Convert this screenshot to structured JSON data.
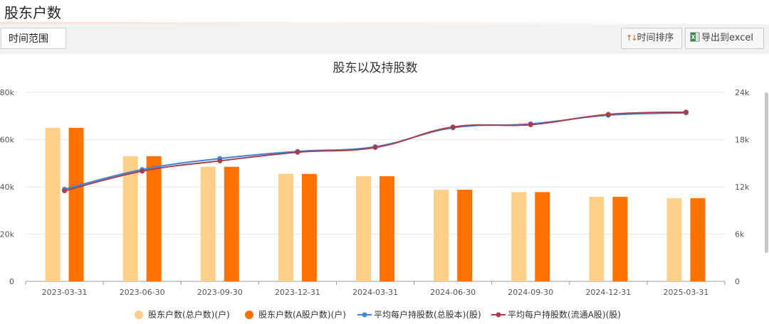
{
  "page": {
    "title": "股东户数"
  },
  "toolbar": {
    "range_label": "时间范围",
    "sort_label": "时间排序",
    "sort_icon": "sort-arrows-icon",
    "export_label": "导出到excel",
    "export_icon": "excel-icon"
  },
  "chart_data": {
    "type": "bar",
    "title": "股东以及持股数",
    "categories": [
      "2023-03-31",
      "2023-06-30",
      "2023-09-30",
      "2023-12-31",
      "2024-03-31",
      "2024-06-30",
      "2024-09-30",
      "2024-12-31",
      "2025-03-31"
    ],
    "y_left": {
      "ticks": [
        "0",
        "20k",
        "40k",
        "60k",
        "80k"
      ],
      "min": 0,
      "max": 80000
    },
    "y_right": {
      "ticks": [
        "0",
        "6k",
        "12k",
        "18k",
        "24k"
      ],
      "min": 0,
      "max": 24000
    },
    "grid": true,
    "legend_position": "bottom",
    "series": [
      {
        "name": "股东户数(总户数)(户)",
        "type": "bar",
        "axis": "left",
        "color": "#fcd088",
        "values": [
          65000,
          53000,
          48500,
          45500,
          44500,
          38800,
          37800,
          35800,
          35200
        ]
      },
      {
        "name": "股东户数(A股户数)(户)",
        "type": "bar",
        "axis": "left",
        "color": "#ff7200",
        "values": [
          65000,
          53000,
          48500,
          45500,
          44500,
          38800,
          37800,
          35800,
          35200
        ]
      },
      {
        "name": "平均每户持股数(总股本)(股)",
        "type": "line",
        "axis": "right",
        "color": "#3a86d8",
        "values": [
          11700,
          14200,
          15600,
          16500,
          17100,
          19500,
          20000,
          21100,
          21400
        ]
      },
      {
        "name": "平均每户持股数(流通A股)(股)",
        "type": "line",
        "axis": "right",
        "color": "#a83e4c",
        "values": [
          11500,
          14000,
          15300,
          16400,
          17000,
          19600,
          19900,
          21200,
          21500
        ]
      }
    ]
  }
}
